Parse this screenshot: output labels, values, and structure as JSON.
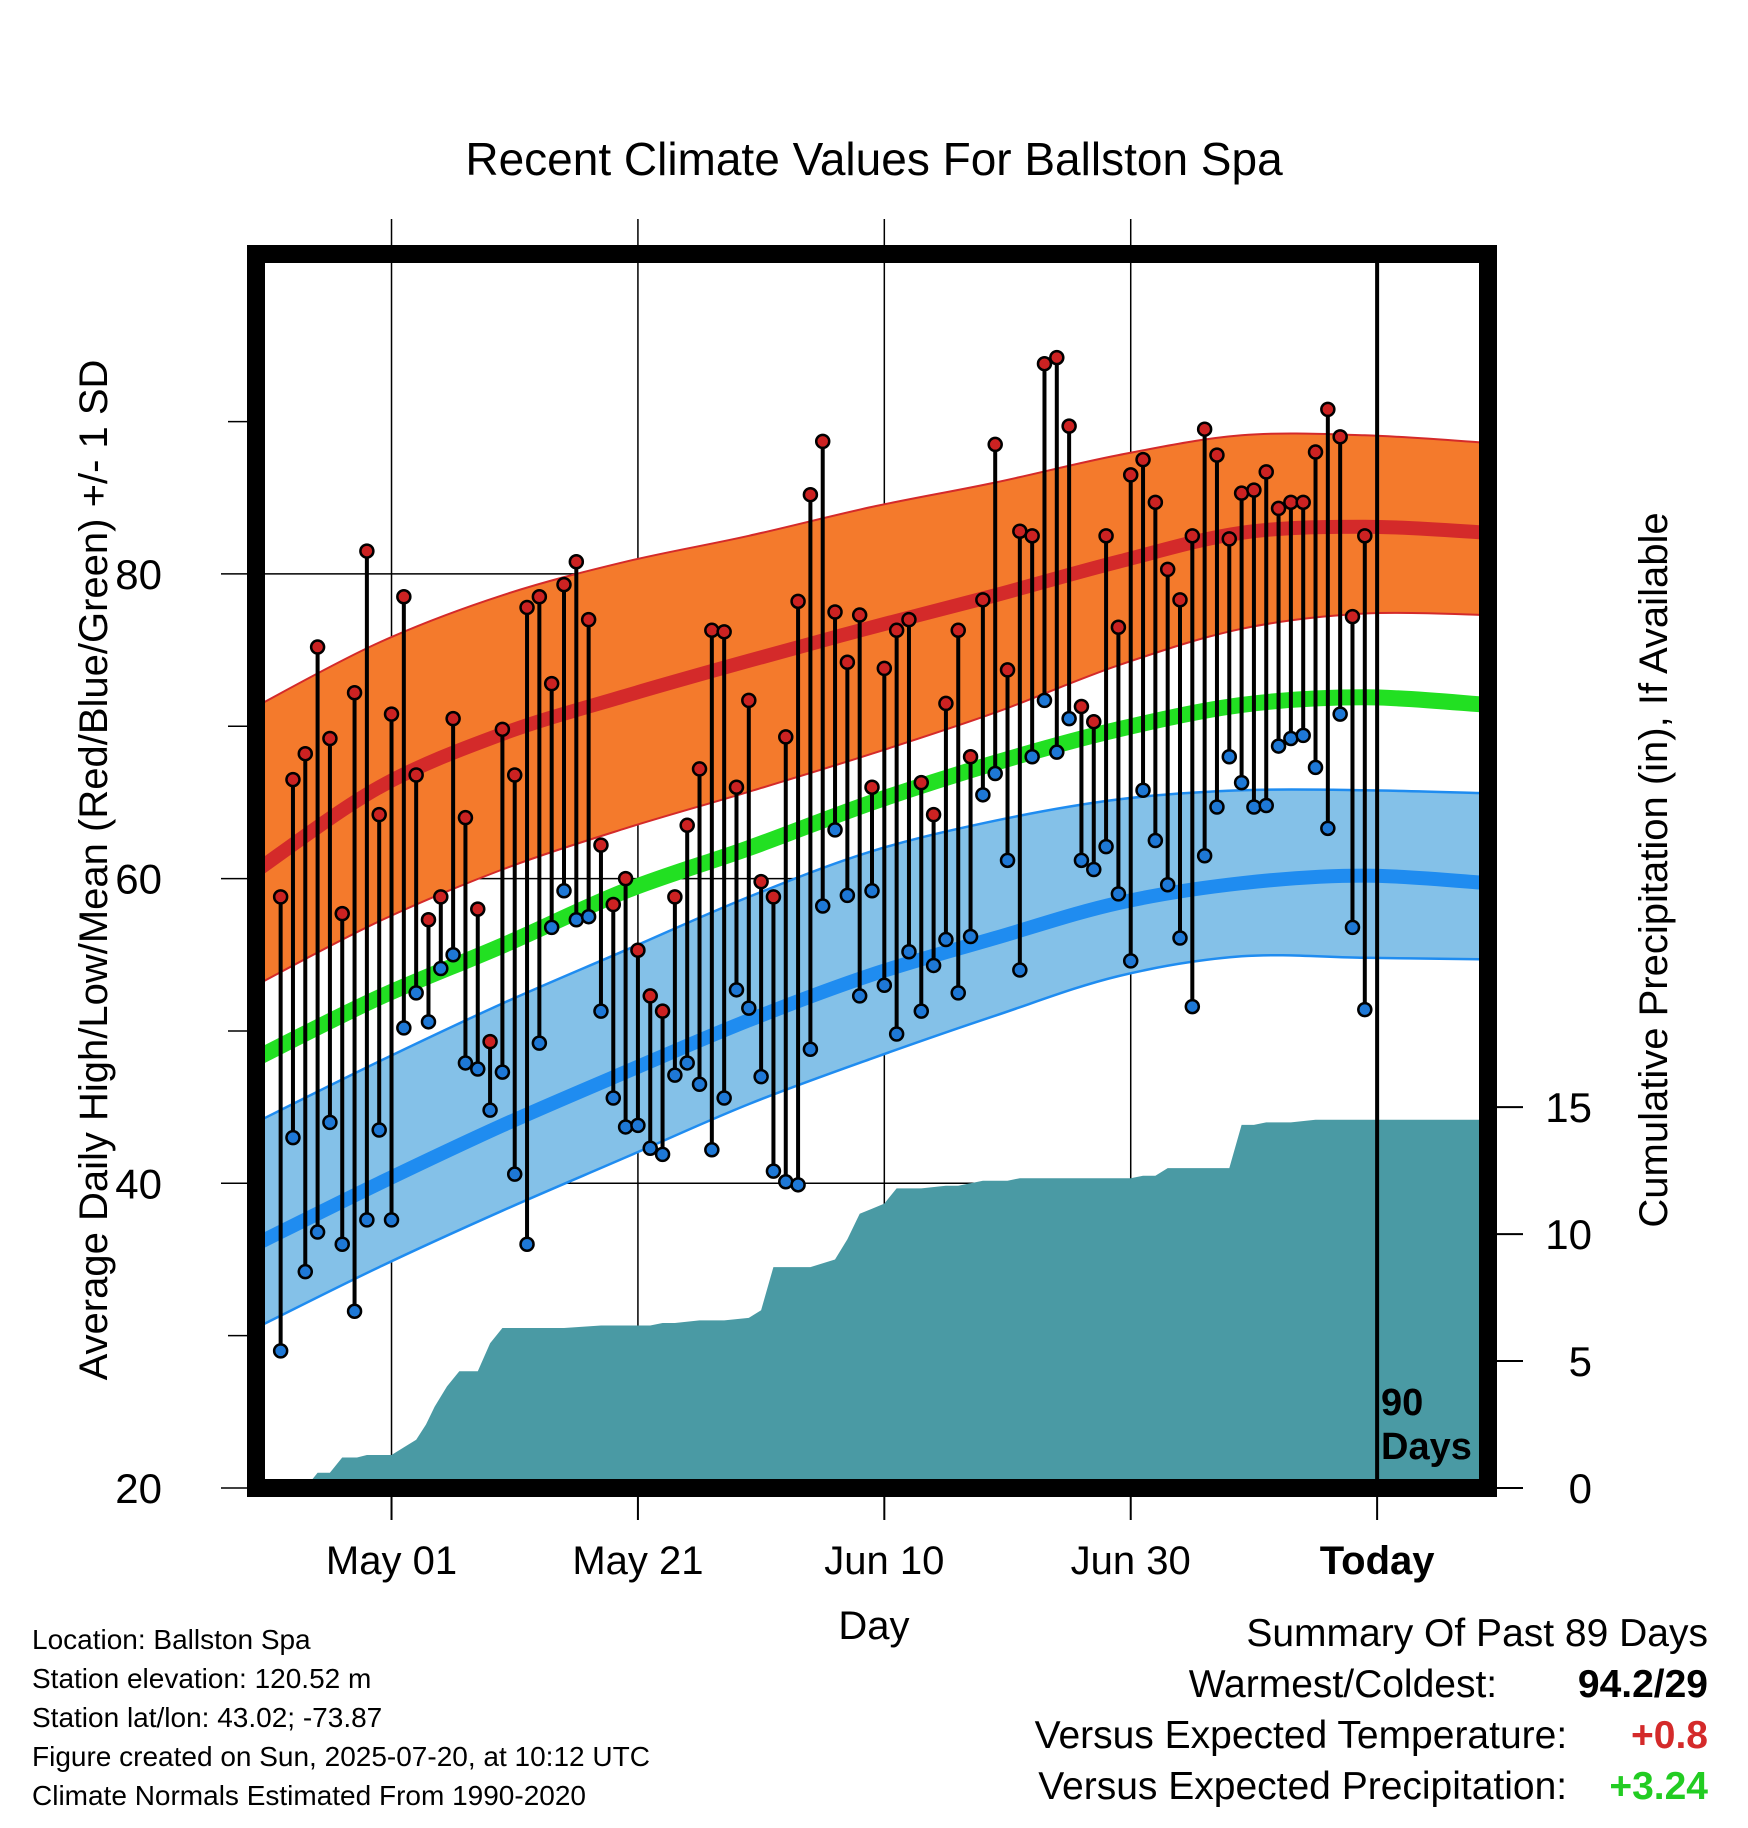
{
  "chart_data": {
    "type": "line",
    "title": "Recent Climate Values For Ballston Spa",
    "xlabel": "Day",
    "ylabel_left": "Average Daily High/Low/Mean (Red/Blue/Green) +/- 1 SD",
    "ylabel_right": "Cumulative Precipitation (in), If Available",
    "x_tick_labels": [
      "May 01",
      "May 21",
      "Jun 10",
      "Jun 30",
      "Today"
    ],
    "x_tick_days": [
      19,
      39,
      59,
      79,
      99
    ],
    "x_range_days": [
      8,
      108
    ],
    "start_date": "2025-04-12",
    "ylim_left": [
      20,
      101
    ],
    "y_ticks_left": [
      20,
      40,
      60,
      80
    ],
    "ylim_right": [
      0,
      48.6
    ],
    "y_ticks_right": [
      0,
      5,
      10,
      15
    ],
    "today_marker": {
      "day": 99,
      "label_line1": "90",
      "label_line2": "Days"
    },
    "colors": {
      "high_band": "#f47a2c",
      "high_mean": "#d42a2a",
      "low_band": "#84c1e8",
      "low_mean": "#1f8cf0",
      "mean": "#22e022",
      "precip": "#4a9aa4",
      "high_dot": "#cc2222",
      "low_dot": "#1e78d6"
    },
    "normals": {
      "days": [
        8,
        18,
        28,
        38,
        48,
        58,
        68,
        78,
        88,
        98,
        108
      ],
      "high_mean": [
        60.5,
        66.0,
        69.5,
        72.0,
        74.3,
        76.5,
        78.6,
        80.8,
        82.7,
        83.1,
        82.7
      ],
      "high_sd_upper": [
        71.3,
        75.5,
        78.6,
        80.8,
        82.5,
        84.4,
        86.0,
        87.8,
        89.1,
        89.1,
        88.6
      ],
      "high_sd_lower": [
        53.0,
        57.2,
        60.6,
        63.3,
        65.7,
        68.2,
        70.9,
        74.0,
        76.4,
        77.4,
        77.3
      ],
      "mean": [
        48.2,
        52.2,
        55.6,
        59.2,
        62.0,
        65.0,
        67.6,
        69.8,
        71.4,
        71.9,
        71.4
      ],
      "low_mean": [
        36.0,
        40.0,
        43.8,
        47.3,
        50.7,
        53.7,
        56.1,
        58.4,
        59.7,
        60.2,
        59.7
      ],
      "low_sd_upper": [
        44.0,
        48.0,
        51.8,
        55.3,
        58.8,
        61.8,
        63.8,
        65.2,
        65.8,
        65.8,
        65.6
      ],
      "low_sd_lower": [
        30.5,
        34.5,
        38.2,
        41.7,
        45.2,
        48.2,
        51.0,
        53.6,
        54.9,
        54.8,
        54.7
      ]
    },
    "daily_high": [
      58.8,
      66.5,
      68.2,
      75.2,
      69.2,
      57.7,
      72.2,
      81.5,
      64.2,
      70.8,
      78.5,
      66.8,
      57.3,
      58.8,
      70.5,
      64.0,
      58.0,
      49.3,
      69.8,
      66.8,
      77.8,
      78.5,
      72.8,
      79.3,
      80.8,
      77.0,
      62.2,
      58.3,
      60.0,
      55.3,
      52.3,
      51.3,
      58.8,
      63.5,
      67.2,
      76.3,
      76.2,
      66.0,
      71.7,
      59.8,
      58.8,
      69.3,
      78.2,
      85.2,
      88.7,
      77.5,
      74.2,
      77.3,
      66.0,
      73.8,
      76.3,
      77.0,
      66.3,
      64.2,
      71.5,
      76.3,
      68.0,
      78.3,
      88.5,
      73.7,
      82.8,
      82.5,
      93.8,
      94.2,
      89.7,
      71.3,
      70.3,
      82.5,
      76.5,
      86.5,
      87.5,
      84.7,
      80.3,
      78.3,
      82.5,
      89.5,
      87.8,
      82.3,
      85.3,
      85.5,
      86.7,
      84.3,
      84.7,
      84.7,
      88.0,
      90.8,
      89.0,
      77.2,
      82.5
    ],
    "daily_low": [
      29.0,
      43.0,
      34.2,
      36.8,
      44.0,
      36.0,
      31.6,
      37.6,
      43.5,
      37.6,
      50.2,
      52.5,
      50.6,
      54.1,
      55.0,
      47.9,
      47.5,
      44.8,
      47.3,
      40.6,
      36.0,
      49.2,
      56.8,
      59.2,
      57.3,
      57.5,
      51.3,
      45.6,
      43.7,
      43.8,
      42.3,
      41.9,
      47.1,
      47.9,
      46.5,
      42.2,
      45.6,
      52.7,
      51.5,
      47.0,
      40.8,
      40.1,
      39.9,
      48.8,
      58.2,
      63.2,
      58.9,
      52.3,
      59.2,
      53.0,
      49.8,
      55.2,
      51.3,
      54.3,
      56.0,
      52.5,
      56.2,
      65.5,
      66.9,
      61.2,
      54.0,
      68.0,
      71.7,
      68.3,
      70.5,
      61.2,
      60.6,
      62.1,
      59.0,
      54.6,
      65.8,
      62.5,
      59.6,
      56.1,
      51.6,
      61.5,
      64.7,
      68.0,
      66.3,
      64.7,
      64.8,
      68.7,
      69.2,
      69.4,
      67.3,
      63.3,
      70.8,
      56.8,
      51.4
    ],
    "precip_cumulative": {
      "days": [
        8,
        12,
        13,
        14,
        15,
        16,
        16.2,
        17,
        18,
        19,
        20,
        21,
        21.8,
        22.5,
        23.5,
        24.5,
        25.5,
        26,
        27,
        28,
        29,
        29.8,
        30.3,
        33,
        36,
        38,
        40,
        41,
        42,
        44,
        46,
        48,
        49,
        50,
        51,
        53,
        55,
        56,
        57,
        58,
        59,
        60,
        62,
        64,
        65,
        66,
        67,
        68,
        69,
        70,
        72,
        74,
        76,
        78,
        79,
        80,
        81,
        82,
        84,
        86,
        87,
        88,
        89,
        90,
        92,
        94,
        98,
        108
      ],
      "values": [
        0.0,
        0.0,
        0.6,
        0.6,
        1.2,
        1.2,
        1.2,
        1.3,
        1.3,
        1.3,
        1.6,
        1.9,
        2.5,
        3.2,
        4.0,
        4.6,
        4.6,
        4.6,
        5.7,
        6.3,
        6.3,
        6.3,
        6.3,
        6.3,
        6.4,
        6.4,
        6.4,
        6.5,
        6.5,
        6.6,
        6.6,
        6.7,
        7.0,
        8.7,
        8.7,
        8.7,
        9.0,
        9.8,
        10.8,
        11.0,
        11.2,
        11.8,
        11.8,
        11.9,
        11.9,
        12.0,
        12.1,
        12.1,
        12.1,
        12.2,
        12.2,
        12.2,
        12.2,
        12.2,
        12.2,
        12.3,
        12.3,
        12.6,
        12.6,
        12.6,
        12.6,
        14.3,
        14.3,
        14.4,
        14.4,
        14.5,
        14.5,
        14.5
      ]
    }
  },
  "footer_left": [
    "Location: Ballston Spa",
    "Station elevation: 120.52 m",
    "Station lat/lon: 43.02; -73.87",
    "Figure created on Sun, 2025-07-20, at 10:12 UTC",
    "Climate Normals Estimated From 1990-2020"
  ],
  "summary": {
    "title": "Summary Of Past 89 Days",
    "warmest_coldest_label": "Warmest/Coldest:",
    "warmest_coldest_value": "94.2/29",
    "temp_label": "Versus Expected Temperature:",
    "temp_value": "+0.8",
    "precip_label": "Versus Expected Precipitation:",
    "precip_value": "+3.24"
  }
}
